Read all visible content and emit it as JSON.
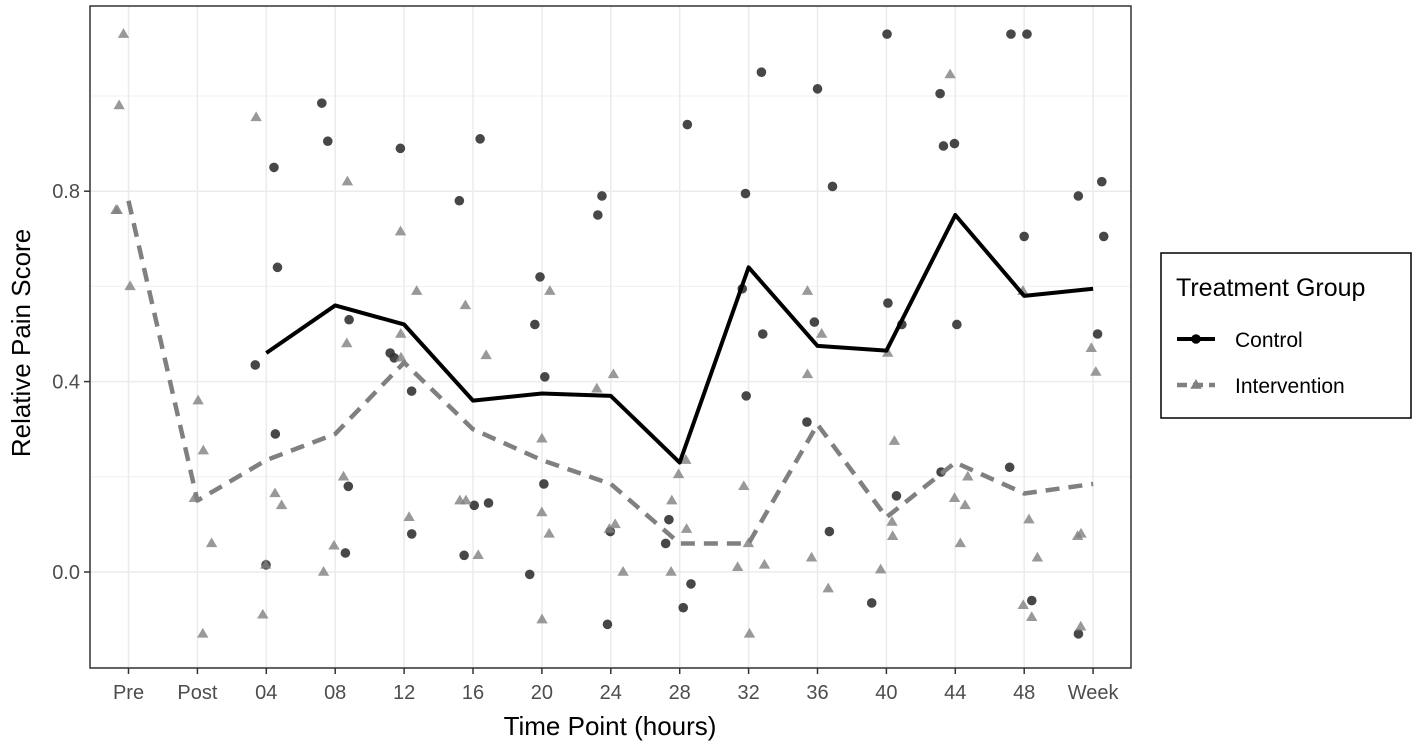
{
  "chart_data": {
    "type": "line",
    "title": "",
    "xlabel": "Time Point (hours)",
    "ylabel": "Relative Pain Score",
    "categories": [
      "Pre",
      "Post",
      "04",
      "08",
      "12",
      "16",
      "20",
      "24",
      "28",
      "32",
      "36",
      "40",
      "44",
      "48",
      "Week"
    ],
    "yticks": [
      0.0,
      0.4,
      0.8
    ],
    "ytick_labels": [
      "0.0",
      "0.4",
      "0.8"
    ],
    "ylim": [
      -0.2,
      1.2
    ],
    "grid": true,
    "legend": {
      "title": "Treatment Group",
      "position": "right",
      "entries": [
        {
          "name": "Control",
          "color": "#000000",
          "line": "solid",
          "marker": "circle"
        },
        {
          "name": "Intervention",
          "color": "#808080",
          "line": "dashed",
          "marker": "triangle"
        }
      ]
    },
    "series": [
      {
        "name": "Control",
        "color": "#000000",
        "line": "solid",
        "values": [
          null,
          null,
          0.46,
          0.56,
          0.52,
          0.36,
          0.375,
          0.37,
          0.23,
          0.64,
          0.475,
          0.465,
          0.75,
          0.58,
          0.595
        ],
        "points": [
          [
            "04",
            0.85
          ],
          [
            "04",
            0.64
          ],
          [
            "04",
            0.435
          ],
          [
            "04",
            0.29
          ],
          [
            "04",
            0.015
          ],
          [
            "08",
            0.985
          ],
          [
            "08",
            0.905
          ],
          [
            "08",
            0.53
          ],
          [
            "08",
            0.18
          ],
          [
            "08",
            0.04
          ],
          [
            "12",
            0.89
          ],
          [
            "12",
            0.46
          ],
          [
            "12",
            0.45
          ],
          [
            "12",
            0.38
          ],
          [
            "12",
            0.08
          ],
          [
            "16",
            0.91
          ],
          [
            "16",
            0.78
          ],
          [
            "16",
            0.145
          ],
          [
            "16",
            0.14
          ],
          [
            "16",
            0.035
          ],
          [
            "20",
            0.62
          ],
          [
            "20",
            0.52
          ],
          [
            "20",
            0.41
          ],
          [
            "20",
            0.185
          ],
          [
            "20",
            -0.005
          ],
          [
            "24",
            0.79
          ],
          [
            "24",
            0.75
          ],
          [
            "24",
            0.085
          ],
          [
            "24",
            -0.11
          ],
          [
            "28",
            0.94
          ],
          [
            "28",
            0.11
          ],
          [
            "28",
            0.06
          ],
          [
            "28",
            -0.025
          ],
          [
            "28",
            -0.075
          ],
          [
            "32",
            1.05
          ],
          [
            "32",
            0.795
          ],
          [
            "32",
            0.595
          ],
          [
            "32",
            0.5
          ],
          [
            "32",
            0.37
          ],
          [
            "36",
            1.015
          ],
          [
            "36",
            0.81
          ],
          [
            "36",
            0.525
          ],
          [
            "36",
            0.315
          ],
          [
            "36",
            0.085
          ],
          [
            "40",
            1.13
          ],
          [
            "40",
            0.565
          ],
          [
            "40",
            0.52
          ],
          [
            "40",
            0.16
          ],
          [
            "40",
            -0.065
          ],
          [
            "44",
            1.005
          ],
          [
            "44",
            0.9
          ],
          [
            "44",
            0.895
          ],
          [
            "44",
            0.52
          ],
          [
            "44",
            0.21
          ],
          [
            "48",
            1.13
          ],
          [
            "48",
            1.13
          ],
          [
            "48",
            0.705
          ],
          [
            "48",
            0.22
          ],
          [
            "48",
            -0.06
          ],
          [
            "Week",
            0.82
          ],
          [
            "Week",
            0.79
          ],
          [
            "Week",
            0.705
          ],
          [
            "Week",
            0.5
          ],
          [
            "Week",
            -0.13
          ]
        ]
      },
      {
        "name": "Intervention",
        "color": "#808080",
        "line": "dashed",
        "values": [
          0.78,
          0.15,
          0.235,
          0.29,
          0.44,
          0.3,
          0.235,
          0.185,
          0.06,
          0.06,
          0.31,
          0.115,
          0.23,
          0.165,
          0.185
        ],
        "points": [
          [
            "Pre",
            1.13
          ],
          [
            "Pre",
            0.98
          ],
          [
            "Pre",
            0.76
          ],
          [
            "Pre",
            0.76
          ],
          [
            "Pre",
            0.6
          ],
          [
            "Post",
            0.36
          ],
          [
            "Post",
            0.255
          ],
          [
            "Post",
            0.155
          ],
          [
            "Post",
            0.06
          ],
          [
            "Post",
            -0.13
          ],
          [
            "04",
            0.955
          ],
          [
            "04",
            0.165
          ],
          [
            "04",
            0.14
          ],
          [
            "04",
            0.015
          ],
          [
            "04",
            -0.09
          ],
          [
            "08",
            0.82
          ],
          [
            "08",
            0.48
          ],
          [
            "08",
            0.2
          ],
          [
            "08",
            0.055
          ],
          [
            "08",
            0.0
          ],
          [
            "12",
            0.715
          ],
          [
            "12",
            0.59
          ],
          [
            "12",
            0.5
          ],
          [
            "12",
            0.115
          ],
          [
            "12",
            0.45
          ],
          [
            "16",
            0.56
          ],
          [
            "16",
            0.455
          ],
          [
            "16",
            0.15
          ],
          [
            "16",
            0.035
          ],
          [
            "16",
            0.15
          ],
          [
            "20",
            0.59
          ],
          [
            "20",
            0.28
          ],
          [
            "20",
            0.125
          ],
          [
            "20",
            0.08
          ],
          [
            "20",
            -0.1
          ],
          [
            "24",
            0.415
          ],
          [
            "24",
            0.385
          ],
          [
            "24",
            0.1
          ],
          [
            "24",
            0.09
          ],
          [
            "24",
            0.0
          ],
          [
            "28",
            0.235
          ],
          [
            "28",
            0.205
          ],
          [
            "28",
            0.15
          ],
          [
            "28",
            0.09
          ],
          [
            "28",
            0.0
          ],
          [
            "32",
            0.18
          ],
          [
            "32",
            0.06
          ],
          [
            "32",
            0.015
          ],
          [
            "32",
            0.01
          ],
          [
            "32",
            -0.13
          ],
          [
            "36",
            0.59
          ],
          [
            "36",
            0.5
          ],
          [
            "36",
            0.415
          ],
          [
            "36",
            0.03
          ],
          [
            "36",
            -0.035
          ],
          [
            "40",
            0.275
          ],
          [
            "40",
            0.105
          ],
          [
            "40",
            0.075
          ],
          [
            "40",
            0.005
          ],
          [
            "40",
            0.46
          ],
          [
            "44",
            1.045
          ],
          [
            "44",
            0.2
          ],
          [
            "44",
            0.155
          ],
          [
            "44",
            0.14
          ],
          [
            "44",
            0.06
          ],
          [
            "48",
            0.59
          ],
          [
            "48",
            0.11
          ],
          [
            "48",
            0.03
          ],
          [
            "48",
            -0.07
          ],
          [
            "48",
            -0.095
          ],
          [
            "Week",
            0.47
          ],
          [
            "Week",
            0.42
          ],
          [
            "Week",
            0.08
          ],
          [
            "Week",
            0.075
          ],
          [
            "Week",
            -0.115
          ]
        ]
      }
    ]
  }
}
